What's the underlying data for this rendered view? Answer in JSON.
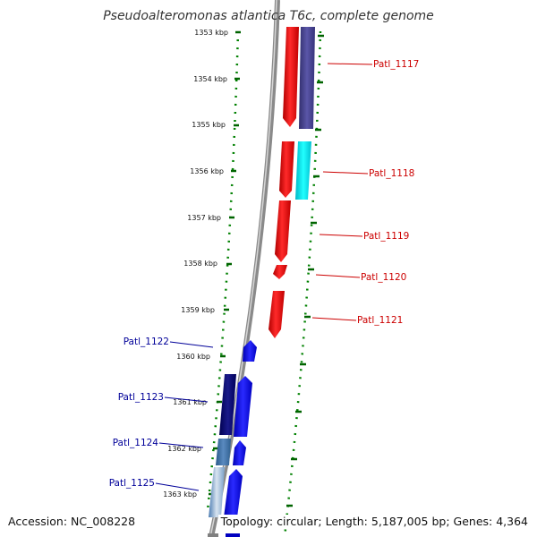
{
  "title": "Pseudoalteromonas atlantica T6c, complete genome",
  "accession": "Accession: NC_008228",
  "topology": "Topology: circular; Length: 5,187,005 bp; Genes: 4,364",
  "ticks": [
    "1353 kbp",
    "1354 kbp",
    "1355 kbp",
    "1356 kbp",
    "1357 kbp",
    "1358 kbp",
    "1359 kbp",
    "1360 kbp",
    "1361 kbp",
    "1362 kbp",
    "1363 kbp"
  ],
  "genes_right": [
    {
      "label": "Patl_1117",
      "color": "#cc0000"
    },
    {
      "label": "Patl_1118",
      "color": "#cc0000"
    },
    {
      "label": "Patl_1119",
      "color": "#cc0000"
    },
    {
      "label": "Patl_1120",
      "color": "#cc0000"
    },
    {
      "label": "Patl_1121",
      "color": "#cc0000"
    }
  ],
  "genes_left": [
    {
      "label": "Patl_1122",
      "color": "#000099"
    },
    {
      "label": "Patl_1123",
      "color": "#000099"
    },
    {
      "label": "Patl_1124",
      "color": "#000099"
    },
    {
      "label": "Patl_1125",
      "color": "#000099"
    }
  ],
  "colors": {
    "forward_strand": "#ff0000",
    "reverse_strand": "#0000ff",
    "tick_dots": "#008000",
    "backbone": "#8a8a8a"
  }
}
